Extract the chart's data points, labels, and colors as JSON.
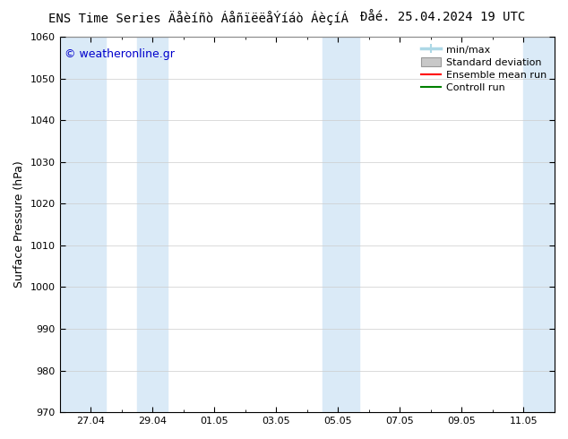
{
  "title_left": "ENS Time Series Äåèíñò ÁåñïëëåÝíáò ÁèçíÁ",
  "title_right": "Ðåé. 25.04.2024 19 UTC",
  "ylabel": "Surface Pressure (hPa)",
  "ylim": [
    970,
    1060
  ],
  "yticks": [
    970,
    980,
    990,
    1000,
    1010,
    1020,
    1030,
    1040,
    1050,
    1060
  ],
  "xtick_labels": [
    "27.04",
    "29.04",
    "01.05",
    "03.05",
    "05.05",
    "07.05",
    "09.05",
    "11.05"
  ],
  "xtick_positions": [
    1.0,
    3.0,
    5.0,
    7.0,
    9.0,
    11.0,
    13.0,
    15.0
  ],
  "xlim": [
    0.0,
    16.0
  ],
  "background_color": "#ffffff",
  "plot_bg_color": "#ffffff",
  "band_color": "#daeaf7",
  "band_ranges": [
    [
      0.0,
      1.5
    ],
    [
      2.5,
      3.5
    ],
    [
      8.5,
      9.0
    ],
    [
      9.0,
      9.7
    ],
    [
      15.0,
      16.0
    ]
  ],
  "watermark": "© weatheronline.gr",
  "watermark_color": "#0000cc",
  "legend_entries": [
    "min/max",
    "Standard deviation",
    "Ensemble mean run",
    "Controll run"
  ],
  "minmax_color": "#add8e6",
  "std_color": "#c8c8c8",
  "ens_color": "#ff0000",
  "ctrl_color": "#008000",
  "grid_color": "#cccccc",
  "font_size_title": 10,
  "font_size_axis_label": 9,
  "font_size_ticks": 8,
  "font_size_legend": 8,
  "font_size_watermark": 9
}
